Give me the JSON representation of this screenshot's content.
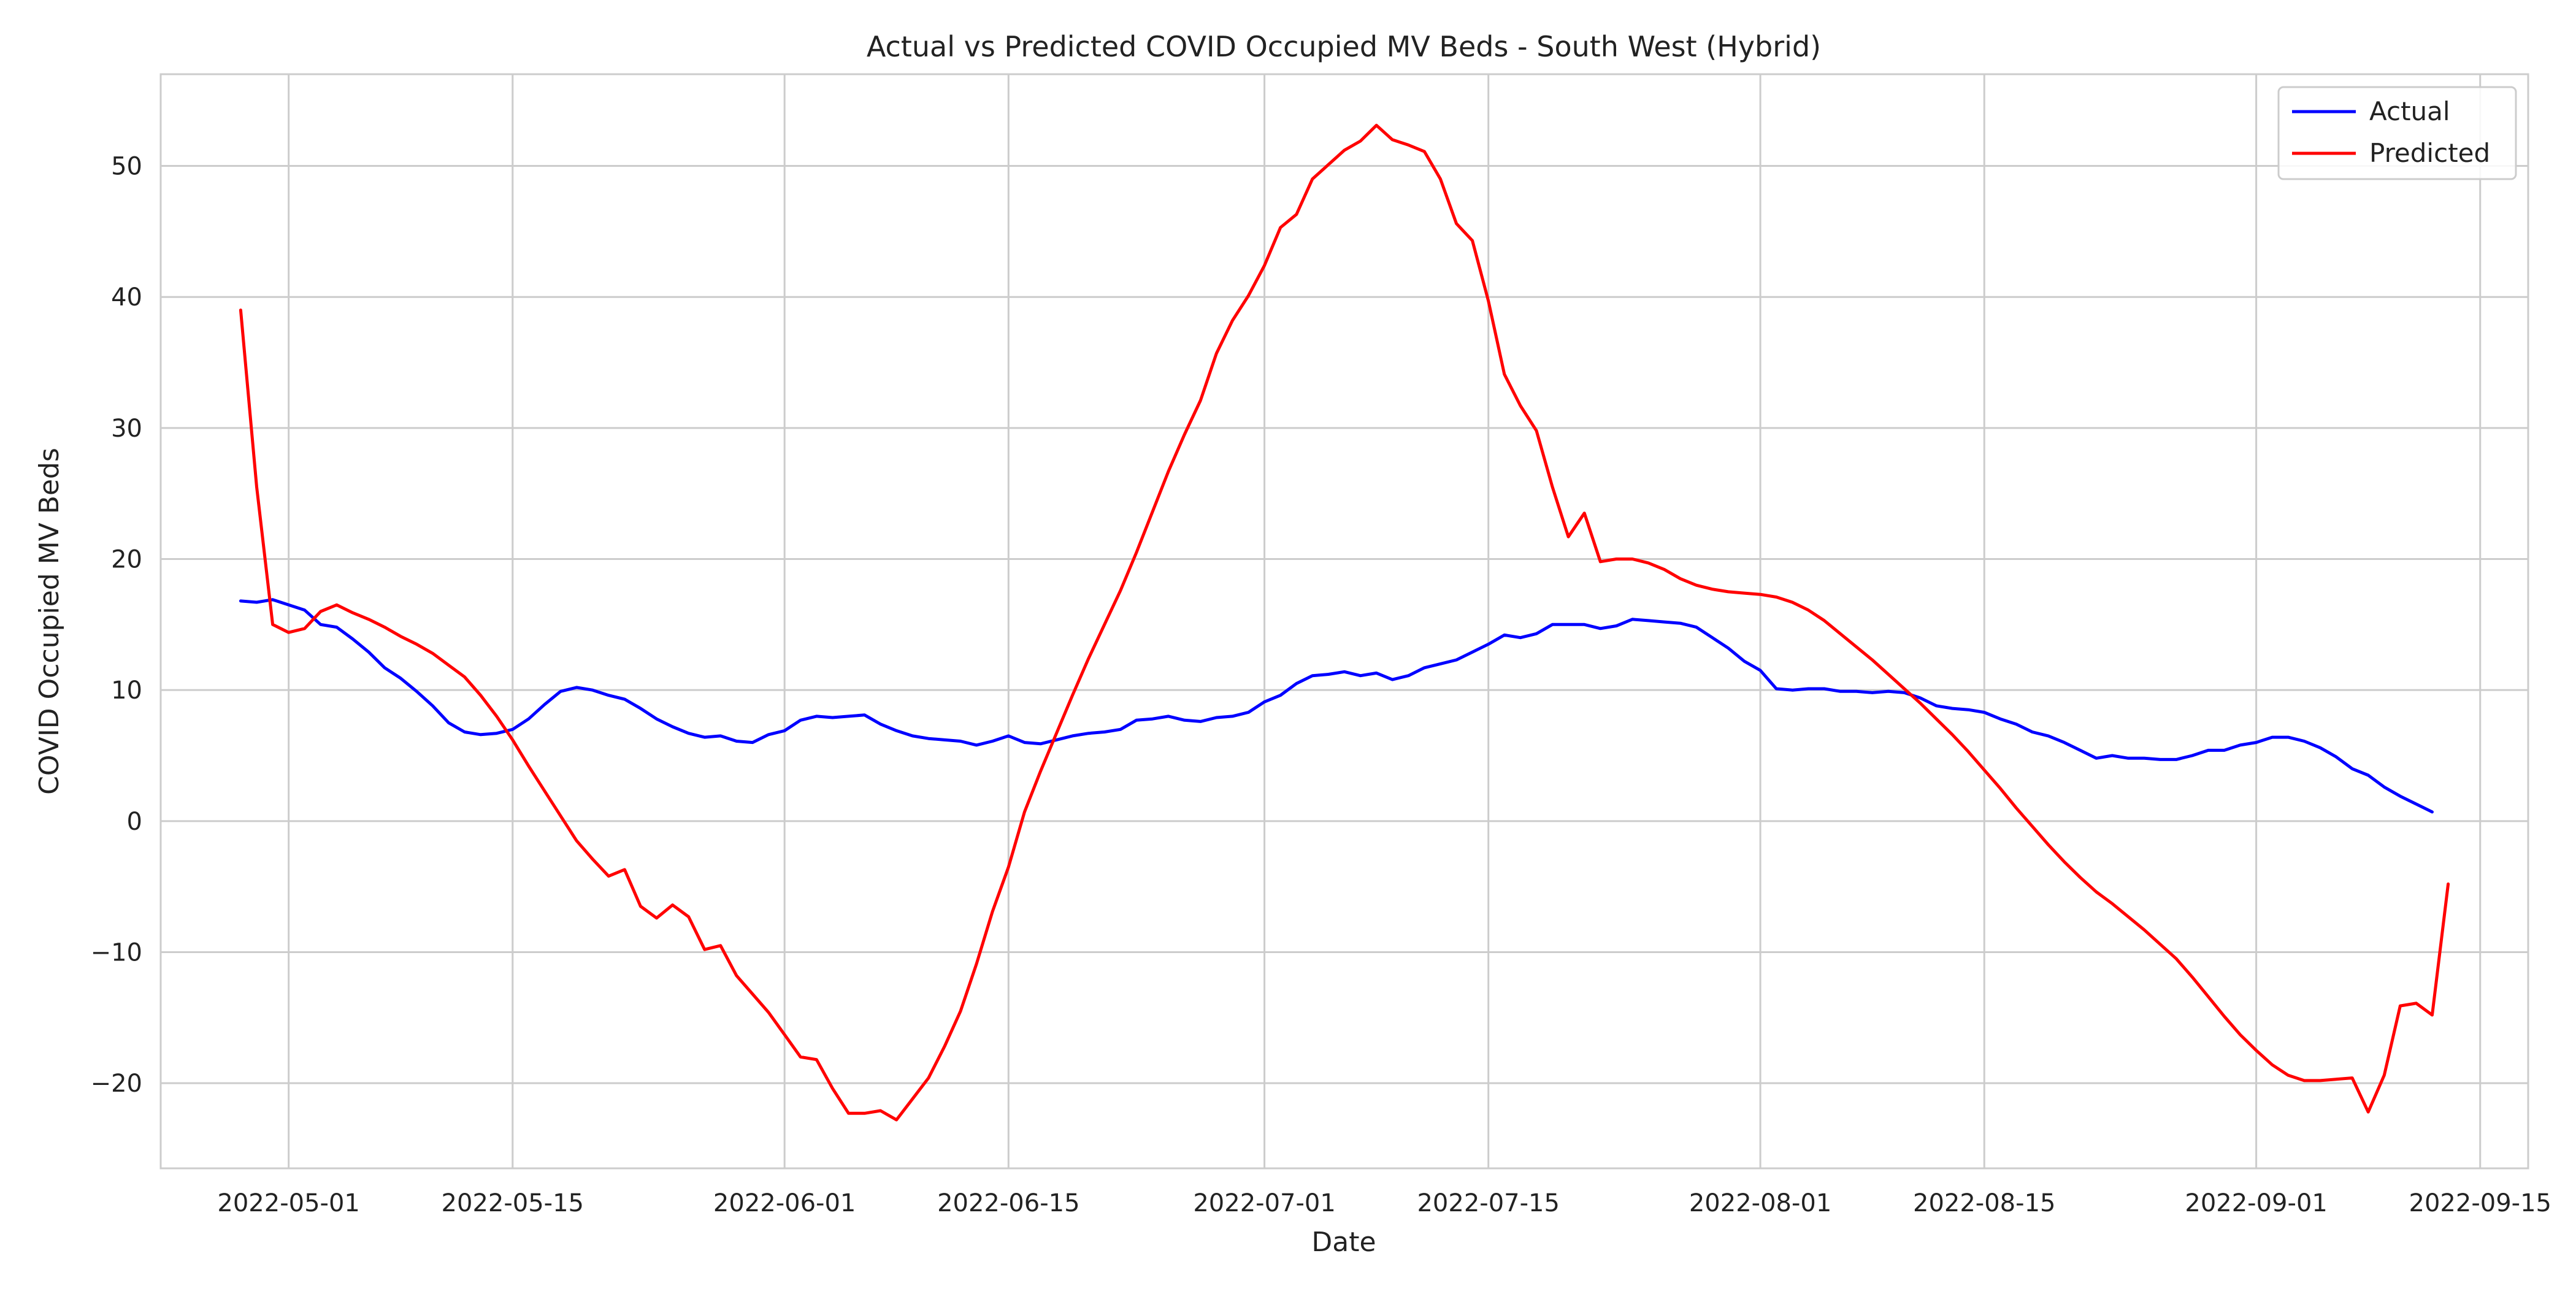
{
  "chart_data": {
    "type": "line",
    "title": "Actual vs Predicted COVID Occupied MV Beds - South West (Hybrid)",
    "xlabel": "Date",
    "ylabel": "COVID Occupied MV Beds",
    "x_type": "date",
    "xlim": [
      "2022-04-23",
      "2022-09-18"
    ],
    "ylim": [
      -26.5,
      57
    ],
    "x_ticks": [
      "2022-05-01",
      "2022-05-15",
      "2022-06-01",
      "2022-06-15",
      "2022-07-01",
      "2022-07-15",
      "2022-08-01",
      "2022-08-15",
      "2022-09-01",
      "2022-09-15"
    ],
    "y_ticks": [
      -20,
      -10,
      0,
      10,
      20,
      30,
      40,
      50
    ],
    "grid": true,
    "legend_position": "top-right",
    "series": [
      {
        "name": "Actual",
        "color": "#0000ff",
        "points": [
          [
            "2022-04-28",
            16.8
          ],
          [
            "2022-04-29",
            16.7
          ],
          [
            "2022-04-30",
            16.9
          ],
          [
            "2022-05-01",
            16.5
          ],
          [
            "2022-05-02",
            16.1
          ],
          [
            "2022-05-03",
            15.0
          ],
          [
            "2022-05-04",
            14.8
          ],
          [
            "2022-05-05",
            13.9
          ],
          [
            "2022-05-06",
            12.9
          ],
          [
            "2022-05-07",
            11.7
          ],
          [
            "2022-05-08",
            10.9
          ],
          [
            "2022-05-09",
            9.9
          ],
          [
            "2022-05-10",
            8.8
          ],
          [
            "2022-05-11",
            7.5
          ],
          [
            "2022-05-12",
            6.8
          ],
          [
            "2022-05-13",
            6.6
          ],
          [
            "2022-05-14",
            6.7
          ],
          [
            "2022-05-15",
            7.0
          ],
          [
            "2022-05-16",
            7.8
          ],
          [
            "2022-05-17",
            8.9
          ],
          [
            "2022-05-18",
            9.9
          ],
          [
            "2022-05-19",
            10.2
          ],
          [
            "2022-05-20",
            10.0
          ],
          [
            "2022-05-21",
            9.6
          ],
          [
            "2022-05-22",
            9.3
          ],
          [
            "2022-05-23",
            8.6
          ],
          [
            "2022-05-24",
            7.8
          ],
          [
            "2022-05-25",
            7.2
          ],
          [
            "2022-05-26",
            6.7
          ],
          [
            "2022-05-27",
            6.4
          ],
          [
            "2022-05-28",
            6.5
          ],
          [
            "2022-05-29",
            6.1
          ],
          [
            "2022-05-30",
            6.0
          ],
          [
            "2022-05-31",
            6.6
          ],
          [
            "2022-06-01",
            6.9
          ],
          [
            "2022-06-02",
            7.7
          ],
          [
            "2022-06-03",
            8.0
          ],
          [
            "2022-06-04",
            7.9
          ],
          [
            "2022-06-05",
            8.0
          ],
          [
            "2022-06-06",
            8.1
          ],
          [
            "2022-06-07",
            7.4
          ],
          [
            "2022-06-08",
            6.9
          ],
          [
            "2022-06-09",
            6.5
          ],
          [
            "2022-06-10",
            6.3
          ],
          [
            "2022-06-11",
            6.2
          ],
          [
            "2022-06-12",
            6.1
          ],
          [
            "2022-06-13",
            5.8
          ],
          [
            "2022-06-14",
            6.1
          ],
          [
            "2022-06-15",
            6.5
          ],
          [
            "2022-06-16",
            6.0
          ],
          [
            "2022-06-17",
            5.9
          ],
          [
            "2022-06-18",
            6.2
          ],
          [
            "2022-06-19",
            6.5
          ],
          [
            "2022-06-20",
            6.7
          ],
          [
            "2022-06-21",
            6.8
          ],
          [
            "2022-06-22",
            7.0
          ],
          [
            "2022-06-23",
            7.7
          ],
          [
            "2022-06-24",
            7.8
          ],
          [
            "2022-06-25",
            8.0
          ],
          [
            "2022-06-26",
            7.7
          ],
          [
            "2022-06-27",
            7.6
          ],
          [
            "2022-06-28",
            7.9
          ],
          [
            "2022-06-29",
            8.0
          ],
          [
            "2022-06-30",
            8.3
          ],
          [
            "2022-07-01",
            9.1
          ],
          [
            "2022-07-02",
            9.6
          ],
          [
            "2022-07-03",
            10.5
          ],
          [
            "2022-07-04",
            11.1
          ],
          [
            "2022-07-05",
            11.2
          ],
          [
            "2022-07-06",
            11.4
          ],
          [
            "2022-07-07",
            11.1
          ],
          [
            "2022-07-08",
            11.3
          ],
          [
            "2022-07-09",
            10.8
          ],
          [
            "2022-07-10",
            11.1
          ],
          [
            "2022-07-11",
            11.7
          ],
          [
            "2022-07-12",
            12.0
          ],
          [
            "2022-07-13",
            12.3
          ],
          [
            "2022-07-14",
            12.9
          ],
          [
            "2022-07-15",
            13.5
          ],
          [
            "2022-07-16",
            14.2
          ],
          [
            "2022-07-17",
            14.0
          ],
          [
            "2022-07-18",
            14.3
          ],
          [
            "2022-07-19",
            15.0
          ],
          [
            "2022-07-20",
            15.0
          ],
          [
            "2022-07-21",
            15.0
          ],
          [
            "2022-07-22",
            14.7
          ],
          [
            "2022-07-23",
            14.9
          ],
          [
            "2022-07-24",
            15.4
          ],
          [
            "2022-07-25",
            15.3
          ],
          [
            "2022-07-26",
            15.2
          ],
          [
            "2022-07-27",
            15.1
          ],
          [
            "2022-07-28",
            14.8
          ],
          [
            "2022-07-29",
            14.0
          ],
          [
            "2022-07-30",
            13.2
          ],
          [
            "2022-07-31",
            12.2
          ],
          [
            "2022-08-01",
            11.5
          ],
          [
            "2022-08-02",
            10.1
          ],
          [
            "2022-08-03",
            10.0
          ],
          [
            "2022-08-04",
            10.1
          ],
          [
            "2022-08-05",
            10.1
          ],
          [
            "2022-08-06",
            9.9
          ],
          [
            "2022-08-07",
            9.9
          ],
          [
            "2022-08-08",
            9.8
          ],
          [
            "2022-08-09",
            9.9
          ],
          [
            "2022-08-10",
            9.8
          ],
          [
            "2022-08-11",
            9.4
          ],
          [
            "2022-08-12",
            8.8
          ],
          [
            "2022-08-13",
            8.6
          ],
          [
            "2022-08-14",
            8.5
          ],
          [
            "2022-08-15",
            8.3
          ],
          [
            "2022-08-16",
            7.8
          ],
          [
            "2022-08-17",
            7.4
          ],
          [
            "2022-08-18",
            6.8
          ],
          [
            "2022-08-19",
            6.5
          ],
          [
            "2022-08-20",
            6.0
          ],
          [
            "2022-08-21",
            5.4
          ],
          [
            "2022-08-22",
            4.8
          ],
          [
            "2022-08-23",
            5.0
          ],
          [
            "2022-08-24",
            4.8
          ],
          [
            "2022-08-25",
            4.8
          ],
          [
            "2022-08-26",
            4.7
          ],
          [
            "2022-08-27",
            4.7
          ],
          [
            "2022-08-28",
            5.0
          ],
          [
            "2022-08-29",
            5.4
          ],
          [
            "2022-08-30",
            5.4
          ],
          [
            "2022-08-31",
            5.8
          ],
          [
            "2022-09-01",
            6.0
          ],
          [
            "2022-09-02",
            6.4
          ],
          [
            "2022-09-03",
            6.4
          ],
          [
            "2022-09-04",
            6.1
          ],
          [
            "2022-09-05",
            5.6
          ],
          [
            "2022-09-06",
            4.9
          ],
          [
            "2022-09-07",
            4.0
          ],
          [
            "2022-09-08",
            3.5
          ],
          [
            "2022-09-09",
            2.6
          ],
          [
            "2022-09-10",
            1.9
          ],
          [
            "2022-09-11",
            1.3
          ],
          [
            "2022-09-12",
            0.7
          ]
        ]
      },
      {
        "name": "Predicted",
        "color": "#ff0000",
        "points": [
          [
            "2022-04-28",
            39.0
          ],
          [
            "2022-04-29",
            25.5
          ],
          [
            "2022-04-30",
            15.0
          ],
          [
            "2022-05-01",
            14.4
          ],
          [
            "2022-05-02",
            14.7
          ],
          [
            "2022-05-03",
            16.0
          ],
          [
            "2022-05-04",
            16.5
          ],
          [
            "2022-05-05",
            15.9
          ],
          [
            "2022-05-06",
            15.4
          ],
          [
            "2022-05-07",
            14.8
          ],
          [
            "2022-05-08",
            14.1
          ],
          [
            "2022-05-09",
            13.5
          ],
          [
            "2022-05-10",
            12.8
          ],
          [
            "2022-05-11",
            11.9
          ],
          [
            "2022-05-12",
            11.0
          ],
          [
            "2022-05-13",
            9.6
          ],
          [
            "2022-05-14",
            8.0
          ],
          [
            "2022-05-15",
            6.2
          ],
          [
            "2022-05-16",
            4.2
          ],
          [
            "2022-05-17",
            2.3
          ],
          [
            "2022-05-18",
            0.4
          ],
          [
            "2022-05-19",
            -1.5
          ],
          [
            "2022-05-20",
            -2.9
          ],
          [
            "2022-05-21",
            -4.2
          ],
          [
            "2022-05-22",
            -3.7
          ],
          [
            "2022-05-23",
            -6.5
          ],
          [
            "2022-05-24",
            -7.4
          ],
          [
            "2022-05-25",
            -6.4
          ],
          [
            "2022-05-26",
            -7.3
          ],
          [
            "2022-05-27",
            -9.8
          ],
          [
            "2022-05-28",
            -9.5
          ],
          [
            "2022-05-29",
            -11.8
          ],
          [
            "2022-05-30",
            -13.2
          ],
          [
            "2022-05-31",
            -14.6
          ],
          [
            "2022-06-01",
            -16.3
          ],
          [
            "2022-06-02",
            -18.0
          ],
          [
            "2022-06-03",
            -18.2
          ],
          [
            "2022-06-04",
            -20.4
          ],
          [
            "2022-06-05",
            -22.3
          ],
          [
            "2022-06-06",
            -22.3
          ],
          [
            "2022-06-07",
            -22.1
          ],
          [
            "2022-06-08",
            -22.8
          ],
          [
            "2022-06-09",
            -21.2
          ],
          [
            "2022-06-10",
            -19.6
          ],
          [
            "2022-06-11",
            -17.2
          ],
          [
            "2022-06-12",
            -14.5
          ],
          [
            "2022-06-13",
            -10.9
          ],
          [
            "2022-06-14",
            -6.9
          ],
          [
            "2022-06-15",
            -3.5
          ],
          [
            "2022-06-16",
            0.7
          ],
          [
            "2022-06-17",
            3.8
          ],
          [
            "2022-06-18",
            6.7
          ],
          [
            "2022-06-19",
            9.6
          ],
          [
            "2022-06-20",
            12.4
          ],
          [
            "2022-06-21",
            15.0
          ],
          [
            "2022-06-22",
            17.6
          ],
          [
            "2022-06-23",
            20.5
          ],
          [
            "2022-06-24",
            23.6
          ],
          [
            "2022-06-25",
            26.7
          ],
          [
            "2022-06-26",
            29.5
          ],
          [
            "2022-06-27",
            32.1
          ],
          [
            "2022-06-28",
            35.7
          ],
          [
            "2022-06-29",
            38.2
          ],
          [
            "2022-06-30",
            40.1
          ],
          [
            "2022-07-01",
            42.4
          ],
          [
            "2022-07-02",
            45.3
          ],
          [
            "2022-07-03",
            46.3
          ],
          [
            "2022-07-04",
            49.0
          ],
          [
            "2022-07-05",
            50.1
          ],
          [
            "2022-07-06",
            51.2
          ],
          [
            "2022-07-07",
            51.9
          ],
          [
            "2022-07-08",
            53.1
          ],
          [
            "2022-07-09",
            52.0
          ],
          [
            "2022-07-10",
            51.6
          ],
          [
            "2022-07-11",
            51.1
          ],
          [
            "2022-07-12",
            49.0
          ],
          [
            "2022-07-13",
            45.6
          ],
          [
            "2022-07-14",
            44.3
          ],
          [
            "2022-07-15",
            39.7
          ],
          [
            "2022-07-16",
            34.1
          ],
          [
            "2022-07-17",
            31.7
          ],
          [
            "2022-07-18",
            29.8
          ],
          [
            "2022-07-19",
            25.5
          ],
          [
            "2022-07-20",
            21.7
          ],
          [
            "2022-07-21",
            23.5
          ],
          [
            "2022-07-22",
            19.8
          ],
          [
            "2022-07-23",
            20.0
          ],
          [
            "2022-07-24",
            20.0
          ],
          [
            "2022-07-25",
            19.7
          ],
          [
            "2022-07-26",
            19.2
          ],
          [
            "2022-07-27",
            18.5
          ],
          [
            "2022-07-28",
            18.0
          ],
          [
            "2022-07-29",
            17.7
          ],
          [
            "2022-07-30",
            17.5
          ],
          [
            "2022-07-31",
            17.4
          ],
          [
            "2022-08-01",
            17.3
          ],
          [
            "2022-08-02",
            17.1
          ],
          [
            "2022-08-03",
            16.7
          ],
          [
            "2022-08-04",
            16.1
          ],
          [
            "2022-08-05",
            15.3
          ],
          [
            "2022-08-06",
            14.3
          ],
          [
            "2022-08-07",
            13.3
          ],
          [
            "2022-08-08",
            12.3
          ],
          [
            "2022-08-09",
            11.2
          ],
          [
            "2022-08-10",
            10.1
          ],
          [
            "2022-08-11",
            9.0
          ],
          [
            "2022-08-12",
            7.8
          ],
          [
            "2022-08-13",
            6.6
          ],
          [
            "2022-08-14",
            5.3
          ],
          [
            "2022-08-15",
            3.9
          ],
          [
            "2022-08-16",
            2.5
          ],
          [
            "2022-08-17",
            1.0
          ],
          [
            "2022-08-18",
            -0.4
          ],
          [
            "2022-08-19",
            -1.8
          ],
          [
            "2022-08-20",
            -3.1
          ],
          [
            "2022-08-21",
            -4.3
          ],
          [
            "2022-08-22",
            -5.4
          ],
          [
            "2022-08-23",
            -6.3
          ],
          [
            "2022-08-24",
            -7.3
          ],
          [
            "2022-08-25",
            -8.3
          ],
          [
            "2022-08-26",
            -9.4
          ],
          [
            "2022-08-27",
            -10.5
          ],
          [
            "2022-08-28",
            -11.9
          ],
          [
            "2022-08-29",
            -13.4
          ],
          [
            "2022-08-30",
            -14.9
          ],
          [
            "2022-08-31",
            -16.3
          ],
          [
            "2022-09-01",
            -17.5
          ],
          [
            "2022-09-02",
            -18.6
          ],
          [
            "2022-09-03",
            -19.4
          ],
          [
            "2022-09-04",
            -19.8
          ],
          [
            "2022-09-05",
            -19.8
          ],
          [
            "2022-09-06",
            -19.7
          ],
          [
            "2022-09-07",
            -19.6
          ],
          [
            "2022-09-08",
            -22.2
          ],
          [
            "2022-09-09",
            -19.4
          ],
          [
            "2022-09-10",
            -14.1
          ],
          [
            "2022-09-11",
            -13.9
          ],
          [
            "2022-09-12",
            -14.8
          ],
          [
            "2022-09-13",
            -4.8
          ]
        ]
      }
    ]
  }
}
